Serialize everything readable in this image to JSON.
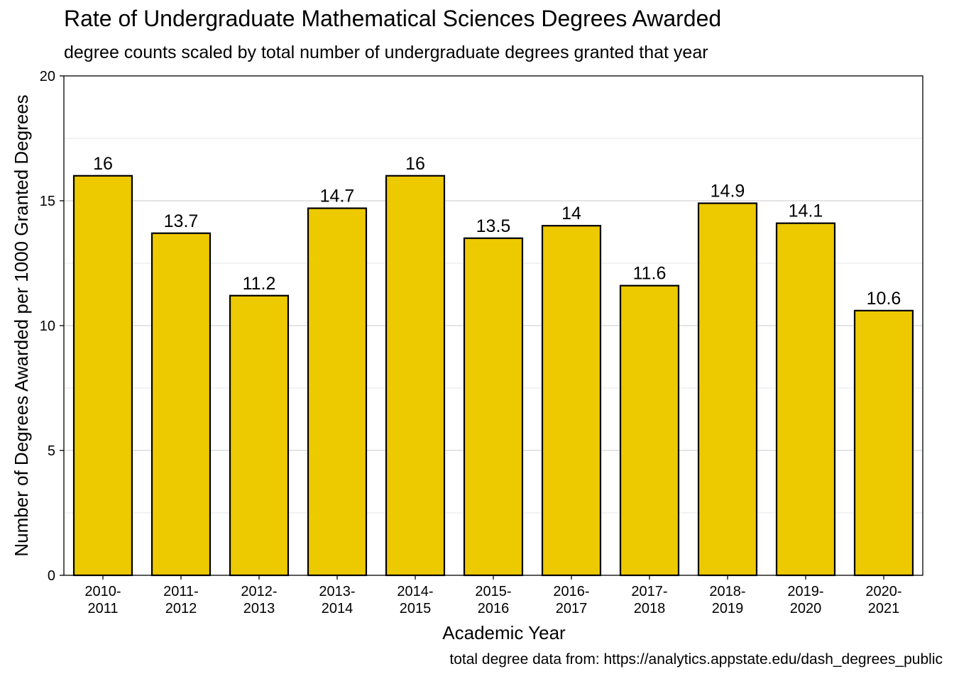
{
  "chart_data": {
    "type": "bar",
    "title": "Rate of Undergraduate Mathematical Sciences Degrees Awarded",
    "subtitle": "degree counts scaled by total number of undergraduate degrees granted that year",
    "caption": "total degree data from: https://analytics.appstate.edu/dash_degrees_public",
    "xlabel": "Academic Year",
    "ylabel": "Number of Degrees Awarded per 1000 Granted Degrees",
    "categories": [
      [
        "2010-",
        "2011"
      ],
      [
        "2011-",
        "2012"
      ],
      [
        "2012-",
        "2013"
      ],
      [
        "2013-",
        "2014"
      ],
      [
        "2014-",
        "2015"
      ],
      [
        "2015-",
        "2016"
      ],
      [
        "2016-",
        "2017"
      ],
      [
        "2017-",
        "2018"
      ],
      [
        "2018-",
        "2019"
      ],
      [
        "2019-",
        "2020"
      ],
      [
        "2020-",
        "2021"
      ]
    ],
    "values": [
      16,
      13.7,
      11.2,
      14.7,
      16,
      13.5,
      14,
      11.6,
      14.9,
      14.1,
      10.6
    ],
    "data_labels": [
      "16",
      "13.7",
      "11.2",
      "14.7",
      "16",
      "13.5",
      "14",
      "11.6",
      "14.9",
      "14.1",
      "10.6"
    ],
    "ylim": [
      0,
      20
    ],
    "yticks": [
      0,
      5,
      10,
      15,
      20
    ],
    "grid": true,
    "bar_color": "#EDC900",
    "bar_edge_color": "#000000"
  }
}
